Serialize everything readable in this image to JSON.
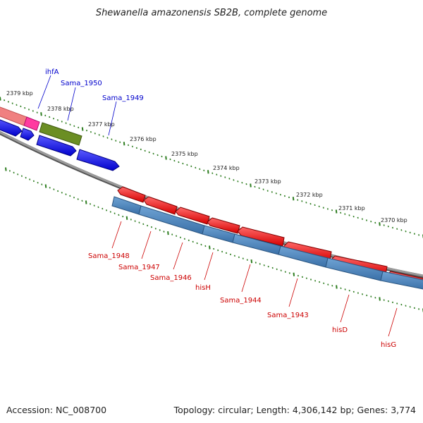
{
  "title": "Shewanella amazonensis SB2B, complete genome",
  "footer": {
    "accession": "Accession: NC_008700",
    "topology": "Topology: circular; Length: 4,306,142 bp; Genes: 3,774"
  },
  "colors": {
    "backbone": "#8a8a8a",
    "tick": "#2e7d20",
    "forward_gene": "#1a1aff",
    "reverse_gene": "#ff1a1a",
    "feature_bar": "#4a86c0",
    "pink_gene": "#ff3aa0",
    "salmon_gene": "#f08080",
    "olive_gene": "#6b8e23",
    "forward_label": "#0000cc",
    "reverse_label": "#cc0000"
  },
  "ruler_labels": [
    "2379 kbp",
    "2378 kbp",
    "2377 kbp",
    "2376 kbp",
    "2375 kbp",
    "2374 kbp",
    "2373 kbp",
    "2372 kbp",
    "2371 kbp",
    "2370 kbp"
  ],
  "forward_labels": [
    "ihfA",
    "Sama_1950",
    "Sama_1949"
  ],
  "reverse_labels": [
    "Sama_1948",
    "Sama_1947",
    "Sama_1946",
    "hisH",
    "Sama_1944",
    "Sama_1943",
    "hisD",
    "hisG"
  ]
}
